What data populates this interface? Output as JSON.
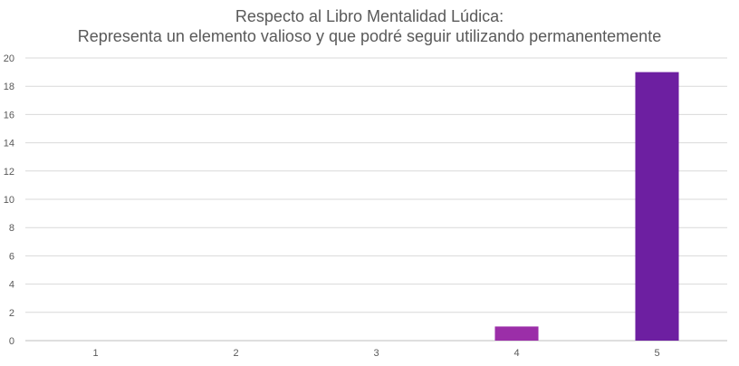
{
  "chart_data": {
    "type": "bar",
    "title_lines": [
      "Respecto al Libro Mentalidad Lúdica:",
      "Representa un elemento valioso y que podré seguir utilizando permanentemente"
    ],
    "categories": [
      "1",
      "2",
      "3",
      "4",
      "5"
    ],
    "values": [
      0,
      0,
      0,
      1,
      19
    ],
    "bar_colors": [
      "#9b2ea8",
      "#9b2ea8",
      "#9b2ea8",
      "#9b2ea8",
      "#6d1fa1"
    ],
    "ylim": [
      0,
      20
    ],
    "yticks": [
      0,
      2,
      4,
      6,
      8,
      10,
      12,
      14,
      16,
      18,
      20
    ],
    "grid": true,
    "legend": "none"
  }
}
